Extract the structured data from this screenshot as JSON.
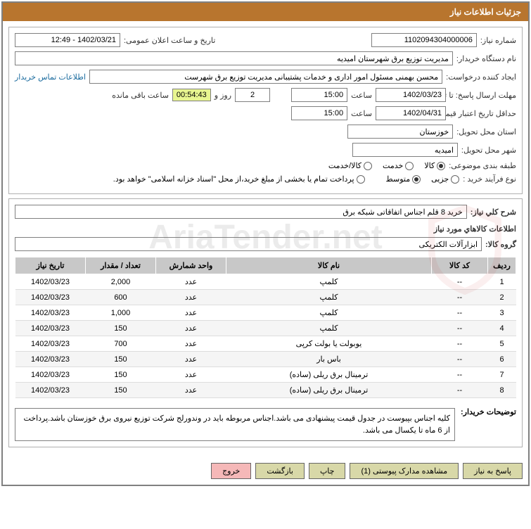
{
  "header": {
    "title": "جزئیات اطلاعات نیاز"
  },
  "fields": {
    "need_no_label": "شماره نیاز:",
    "need_no": "1102094304000006",
    "announce_label": "تاریخ و ساعت اعلان عمومی:",
    "announce_val": "1402/03/21 - 12:49",
    "buyer_dev_label": "نام دستگاه خریدار:",
    "buyer_dev": "مدیریت توزیع برق شهرستان امیدیه",
    "requester_label": "ایجاد کننده درخواست:",
    "requester": "محسن بهمنی مسئول امور اداری و خدمات پشتیبانی مدیریت توزیع برق شهرست",
    "contact_link": "اطلاعات تماس خریدار",
    "deadline_label": "مهلت ارسال پاسخ: تا تاریخ:",
    "deadline_date": "1402/03/23",
    "time_label": "ساعت",
    "deadline_time": "15:00",
    "days_val": "2",
    "days_label": "روز و",
    "countdown": "00:54:43",
    "remain_label": "ساعت باقی مانده",
    "credit_label": "حداقل تاریخ اعتبار قیمت: تا تاریخ:",
    "credit_date": "1402/04/31",
    "credit_time": "15:00",
    "province_label": "استان محل تحویل:",
    "province": "خوزستان",
    "city_label": "شهر محل تحویل:",
    "city": "امیدیه",
    "category_label": "طبقه بندی موضوعی:",
    "cat_kala": "کالا",
    "cat_khedmat": "خدمت",
    "cat_kalakhedmat": "کالا/خدمت",
    "process_label": "نوع فرآیند خرید :",
    "proc_small": "جزیی",
    "proc_medium": "متوسط",
    "payment_note": "پرداخت تمام يا بخشی از مبلغ خريد،از محل \"اسناد خزانه اسلامی\" خواهد بود.",
    "summary_label": "شرح کلي نياز:",
    "summary": "خرید 8 قلم اجناس اتفاقاتی شبکه برق",
    "goods_info_label": "اطلاعات کالاهاي مورد نياز",
    "group_label": "گروه کالا:",
    "group": "ابزارآلات الکتریکی",
    "notes_label": "توضیحات خریدار:",
    "notes": "کلیه اجناس بپیوست در جدول قیمت پیشنهادی می باشد.اجناس مربوطه باید در وندورلج شرکت توزیع نیروی برق خوزستان باشد.پرداخت از 6 ماه تا یکسال می باشد."
  },
  "table": {
    "headers": {
      "row": "ردیف",
      "code": "کد کالا",
      "name": "نام کالا",
      "unit": "واحد شمارش",
      "qty": "تعداد / مقدار",
      "date": "تاریخ نیاز"
    },
    "rows": [
      {
        "r": "1",
        "code": "--",
        "name": "کلمپ",
        "unit": "عدد",
        "qty": "2,000",
        "date": "1402/03/23"
      },
      {
        "r": "2",
        "code": "--",
        "name": "کلمپ",
        "unit": "عدد",
        "qty": "600",
        "date": "1402/03/23"
      },
      {
        "r": "3",
        "code": "--",
        "name": "کلمپ",
        "unit": "عدد",
        "qty": "1,000",
        "date": "1402/03/23"
      },
      {
        "r": "4",
        "code": "--",
        "name": "کلمپ",
        "unit": "عدد",
        "qty": "150",
        "date": "1402/03/23"
      },
      {
        "r": "5",
        "code": "--",
        "name": "یوبولت یا بولت کرپی",
        "unit": "عدد",
        "qty": "700",
        "date": "1402/03/23"
      },
      {
        "r": "6",
        "code": "--",
        "name": "باس بار",
        "unit": "عدد",
        "qty": "150",
        "date": "1402/03/23"
      },
      {
        "r": "7",
        "code": "--",
        "name": "ترمینال برق ریلی (ساده)",
        "unit": "عدد",
        "qty": "150",
        "date": "1402/03/23"
      },
      {
        "r": "8",
        "code": "--",
        "name": "ترمینال برق ریلی (ساده)",
        "unit": "عدد",
        "qty": "150",
        "date": "1402/03/23"
      }
    ]
  },
  "buttons": {
    "respond": "پاسخ به نیاز",
    "attach": "مشاهده مدارک پیوستی (1)",
    "print": "چاپ",
    "back": "بازگشت",
    "exit": "خروج"
  },
  "watermark": "AriaTender.net"
}
